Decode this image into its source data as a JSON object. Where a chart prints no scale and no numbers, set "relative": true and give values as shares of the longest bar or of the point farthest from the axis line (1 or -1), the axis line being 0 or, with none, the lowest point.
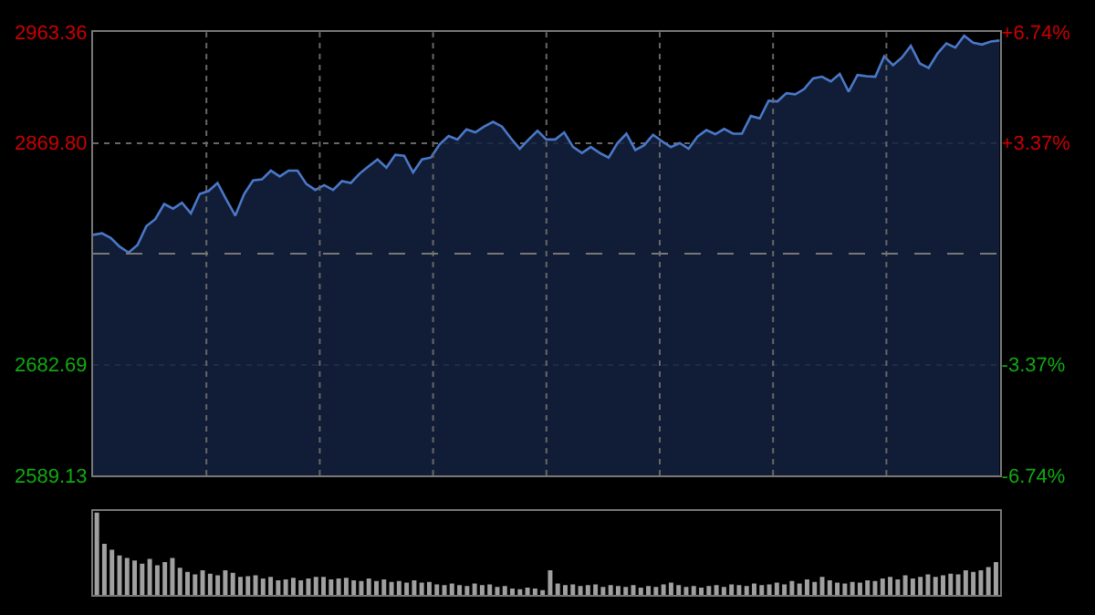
{
  "chart_data": [
    {
      "type": "area",
      "color": "#4a78c8",
      "grid": true,
      "categories": [
        null,
        null,
        null,
        null,
        null,
        null,
        null,
        null,
        null,
        null,
        null,
        null,
        null,
        null,
        null,
        null,
        null,
        null,
        null,
        null,
        null,
        null,
        null,
        null,
        null,
        null,
        null,
        null,
        null,
        null,
        null,
        null,
        null,
        null,
        null,
        null,
        null,
        null,
        null,
        null,
        null,
        null,
        null,
        null,
        null,
        null,
        null,
        null,
        null,
        null,
        null,
        null,
        null,
        null,
        null,
        null,
        null,
        null,
        null,
        null,
        null,
        null,
        null,
        null,
        null,
        null,
        null,
        null,
        null,
        null,
        null,
        null,
        null,
        null,
        null,
        null,
        null,
        null,
        null,
        null,
        null,
        null,
        null,
        null,
        null,
        null,
        null,
        null,
        null,
        null,
        null,
        null,
        null,
        null,
        null,
        null,
        null,
        null,
        null,
        null,
        null,
        null,
        null
      ],
      "values": [
        2792.2,
        2793.6,
        2789.6,
        2782.2,
        2777.3,
        2783.7,
        2799.6,
        2805.5,
        2818.3,
        2814.4,
        2819.3,
        2810.4,
        2826.8,
        2829.3,
        2836.1,
        2821.9,
        2808.5,
        2826.8,
        2838.2,
        2839.1,
        2846.5,
        2841.6,
        2846.5,
        2846.5,
        2835.2,
        2830.2,
        2834.2,
        2830.2,
        2837.6,
        2836.1,
        2844.1,
        2850.1,
        2856.0,
        2849.0,
        2859.9,
        2859.0,
        2845.0,
        2856.0,
        2857.5,
        2868.8,
        2875.8,
        2872.8,
        2881.3,
        2878.8,
        2883.7,
        2887.7,
        2883.7,
        2873.8,
        2864.9,
        2872.8,
        2880.2,
        2872.8,
        2872.8,
        2878.8,
        2866.4,
        2861.4,
        2866.4,
        2861.4,
        2857.5,
        2869.8,
        2877.7,
        2863.9,
        2867.9,
        2876.8,
        2871.3,
        2866.4,
        2869.8,
        2864.9,
        2875.3,
        2880.7,
        2877.3,
        2881.7,
        2877.7,
        2877.7,
        2892.6,
        2890.6,
        2905.5,
        2905.0,
        2911.9,
        2911.0,
        2915.4,
        2924.3,
        2925.8,
        2921.8,
        2928.2,
        2913.3,
        2927.3,
        2926.3,
        2925.8,
        2943.0,
        2935.6,
        2942.1,
        2951.9,
        2937.1,
        2933.2,
        2945.5,
        2954.0,
        2950.4,
        2960.4,
        2954.5,
        2953.0,
        2955.5,
        2956.4
      ],
      "ylim": [
        2589.13,
        2963.36
      ],
      "yticks": [
        2589.13,
        2682.69,
        {
          "value": 2869.8,
          "label": "2869.80"
        },
        2963.36
      ],
      "y2lim": [
        -6.74,
        6.74
      ],
      "y2ticks": [
        {
          "value": -6.74,
          "label": "-6.74%"
        },
        {
          "value": -3.37,
          "label": "-3.37%"
        },
        {
          "value": 3.37,
          "label": "+3.37%"
        },
        {
          "value": 6.74,
          "label": "+6.74%"
        }
      ],
      "ref_lines": [
        {
          "axis": "y",
          "value": 2776.25,
          "line_style": "dashed",
          "color": "#777777"
        }
      ]
    },
    {
      "type": "bar",
      "relative": true,
      "color": "#a0a0a0",
      "categories": [
        null,
        null,
        null,
        null,
        null,
        null,
        null,
        null,
        null,
        null,
        null,
        null,
        null,
        null,
        null,
        null,
        null,
        null,
        null,
        null,
        null,
        null,
        null,
        null,
        null,
        null,
        null,
        null,
        null,
        null,
        null,
        null,
        null,
        null,
        null,
        null,
        null,
        null,
        null,
        null,
        null,
        null,
        null,
        null,
        null,
        null,
        null,
        null,
        null,
        null,
        null,
        null,
        null,
        null,
        null,
        null,
        null,
        null,
        null,
        null,
        null,
        null,
        null,
        null,
        null,
        null,
        null,
        null,
        null,
        null,
        null,
        null,
        null,
        null,
        null,
        null,
        null,
        null,
        null,
        null,
        null,
        null,
        null,
        null,
        null,
        null,
        null,
        null,
        null,
        null,
        null,
        null,
        null,
        null,
        null,
        null,
        null,
        null,
        null,
        null,
        null,
        null,
        null,
        null,
        null,
        null,
        null,
        null,
        null,
        null,
        null,
        null,
        null,
        null,
        null,
        null,
        null,
        null,
        null,
        null
      ],
      "values": [
        1.0,
        0.62,
        0.55,
        0.48,
        0.45,
        0.42,
        0.38,
        0.44,
        0.36,
        0.4,
        0.45,
        0.33,
        0.28,
        0.25,
        0.3,
        0.26,
        0.24,
        0.3,
        0.27,
        0.22,
        0.23,
        0.24,
        0.2,
        0.22,
        0.18,
        0.19,
        0.21,
        0.18,
        0.2,
        0.22,
        0.22,
        0.19,
        0.2,
        0.21,
        0.18,
        0.17,
        0.2,
        0.17,
        0.19,
        0.16,
        0.17,
        0.15,
        0.18,
        0.15,
        0.16,
        0.13,
        0.12,
        0.14,
        0.12,
        0.11,
        0.14,
        0.12,
        0.13,
        0.1,
        0.11,
        0.08,
        0.07,
        0.09,
        0.08,
        0.06,
        0.3,
        0.14,
        0.12,
        0.13,
        0.11,
        0.12,
        0.13,
        0.1,
        0.12,
        0.11,
        0.1,
        0.12,
        0.09,
        0.11,
        0.1,
        0.13,
        0.15,
        0.12,
        0.1,
        0.11,
        0.09,
        0.11,
        0.12,
        0.1,
        0.13,
        0.12,
        0.11,
        0.14,
        0.12,
        0.13,
        0.15,
        0.13,
        0.17,
        0.14,
        0.19,
        0.16,
        0.22,
        0.18,
        0.15,
        0.14,
        0.16,
        0.15,
        0.18,
        0.17,
        0.2,
        0.22,
        0.19,
        0.24,
        0.2,
        0.22,
        0.25,
        0.22,
        0.24,
        0.26,
        0.25,
        0.3,
        0.28,
        0.3,
        0.34,
        0.4
      ]
    }
  ]
}
